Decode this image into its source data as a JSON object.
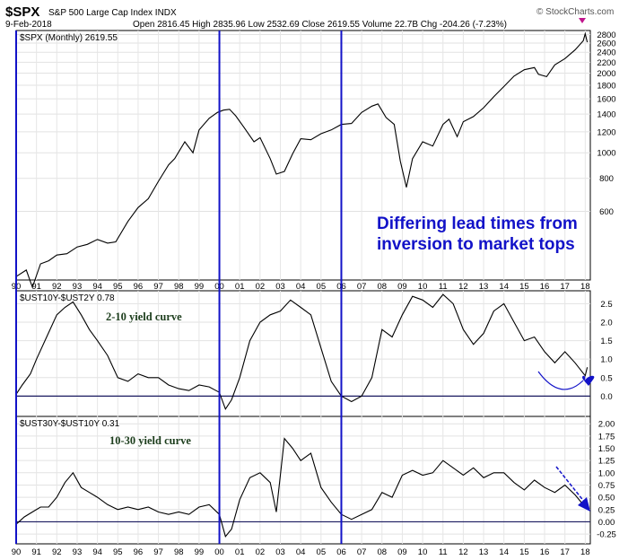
{
  "header": {
    "symbol": "$SPX",
    "name": "S&P 500 Large Cap Index INDX",
    "date": "9-Feb-2018",
    "quote": "Open 2816.45  High 2835.96  Low 2532.69  Close 2619.55  Volume 22.7B  Chg -204.26 (-7.23%)",
    "credit": "© StockCharts.com"
  },
  "chart_data": [
    {
      "type": "line",
      "title": "$SPX (Monthly) 2619.55",
      "scale": "log",
      "x_ticks": [
        "90",
        "91",
        "92",
        "93",
        "94",
        "95",
        "96",
        "97",
        "98",
        "99",
        "00",
        "01",
        "02",
        "03",
        "04",
        "05",
        "06",
        "07",
        "08",
        "09",
        "10",
        "11",
        "12",
        "13",
        "14",
        "15",
        "16",
        "17",
        "18"
      ],
      "y_ticks": [
        600,
        800,
        1000,
        1200,
        1400,
        1600,
        1800,
        2000,
        2200,
        2400,
        2600,
        2800
      ],
      "ylim": [
        330,
        2900
      ],
      "grid": true,
      "annotation": [
        "Differing lead times from",
        "inversion to market tops"
      ],
      "series": [
        {
          "x": [
            1990.0,
            1990.5,
            1990.8,
            1991.2,
            1991.6,
            1992.0,
            1992.5,
            1993.0,
            1993.5,
            1994.0,
            1994.5,
            1994.9,
            1995.5,
            1996.0,
            1996.5,
            1997.0,
            1997.5,
            1997.8,
            1998.3,
            1998.7,
            1999.0,
            1999.5,
            1999.9,
            2000.2,
            2000.5,
            2000.8,
            2001.2,
            2001.7,
            2002.0,
            2002.5,
            2002.8,
            2003.2,
            2003.6,
            2004.0,
            2004.5,
            2005.0,
            2005.5,
            2006.0,
            2006.5,
            2007.0,
            2007.5,
            2007.8,
            2008.2,
            2008.6,
            2008.9,
            2009.2,
            2009.5,
            2010.0,
            2010.5,
            2011.0,
            2011.3,
            2011.7,
            2012.0,
            2012.5,
            2013.0,
            2013.5,
            2014.0,
            2014.5,
            2015.0,
            2015.5,
            2015.7,
            2016.1,
            2016.5,
            2017.0,
            2017.5,
            2017.9,
            2018.0,
            2018.1
          ],
          "y": [
            340,
            360,
            310,
            380,
            390,
            410,
            415,
            440,
            450,
            470,
            455,
            460,
            550,
            620,
            670,
            780,
            900,
            950,
            1100,
            1000,
            1220,
            1350,
            1420,
            1450,
            1460,
            1380,
            1250,
            1100,
            1140,
            950,
            830,
            850,
            990,
            1130,
            1120,
            1180,
            1220,
            1280,
            1290,
            1420,
            1500,
            1530,
            1360,
            1280,
            930,
            740,
            950,
            1100,
            1060,
            1280,
            1340,
            1150,
            1310,
            1370,
            1480,
            1630,
            1780,
            1950,
            2060,
            2100,
            1980,
            1940,
            2150,
            2270,
            2450,
            2650,
            2820,
            2620
          ]
        }
      ]
    },
    {
      "type": "line",
      "title": "$UST10Y-$UST2Y 0.78",
      "x_ticks": [
        "90",
        "91",
        "92",
        "93",
        "94",
        "95",
        "96",
        "97",
        "98",
        "99",
        "00",
        "01",
        "02",
        "03",
        "04",
        "05",
        "06",
        "07",
        "08",
        "09",
        "10",
        "11",
        "12",
        "13",
        "14",
        "15",
        "16",
        "17",
        "18"
      ],
      "y_ticks": [
        0.0,
        0.5,
        1.0,
        1.5,
        2.0,
        2.5
      ],
      "ylim": [
        -0.55,
        2.85
      ],
      "annotation": "2-10 yield curve",
      "series": [
        {
          "x": [
            1990.0,
            1990.3,
            1990.7,
            1991.0,
            1991.5,
            1992.0,
            1992.4,
            1992.8,
            1993.2,
            1993.6,
            1994.0,
            1994.5,
            1995.0,
            1995.5,
            1996.0,
            1996.5,
            1997.0,
            1997.5,
            1998.0,
            1998.5,
            1999.0,
            1999.5,
            2000.0,
            2000.3,
            2000.6,
            2001.0,
            2001.5,
            2002.0,
            2002.5,
            2003.0,
            2003.5,
            2004.0,
            2004.5,
            2005.0,
            2005.5,
            2006.0,
            2006.5,
            2007.0,
            2007.5,
            2008.0,
            2008.5,
            2009.0,
            2009.5,
            2010.0,
            2010.5,
            2011.0,
            2011.5,
            2012.0,
            2012.5,
            2013.0,
            2013.5,
            2014.0,
            2014.5,
            2015.0,
            2015.5,
            2016.0,
            2016.5,
            2017.0,
            2017.5,
            2018.0,
            2018.1
          ],
          "y": [
            0.05,
            0.3,
            0.6,
            1.0,
            1.6,
            2.2,
            2.4,
            2.55,
            2.2,
            1.8,
            1.5,
            1.1,
            0.5,
            0.4,
            0.6,
            0.5,
            0.5,
            0.3,
            0.2,
            0.15,
            0.3,
            0.25,
            0.1,
            -0.35,
            -0.1,
            0.5,
            1.5,
            2.0,
            2.2,
            2.3,
            2.6,
            2.4,
            2.2,
            1.3,
            0.4,
            0.0,
            -0.15,
            0.0,
            0.5,
            1.8,
            1.6,
            2.2,
            2.7,
            2.6,
            2.4,
            2.75,
            2.5,
            1.8,
            1.4,
            1.7,
            2.3,
            2.5,
            2.0,
            1.5,
            1.6,
            1.2,
            0.9,
            1.2,
            0.9,
            0.55,
            0.78
          ]
        }
      ]
    },
    {
      "type": "line",
      "title": "$UST30Y-$UST10Y 0.31",
      "x_ticks": [
        "90",
        "91",
        "92",
        "93",
        "94",
        "95",
        "96",
        "97",
        "98",
        "99",
        "00",
        "01",
        "02",
        "03",
        "04",
        "05",
        "06",
        "07",
        "08",
        "09",
        "10",
        "11",
        "12",
        "13",
        "14",
        "15",
        "16",
        "17",
        "18"
      ],
      "y_ticks": [
        -0.25,
        0.0,
        0.25,
        0.5,
        0.75,
        1.0,
        1.25,
        1.5,
        1.75,
        2.0
      ],
      "ylim": [
        -0.45,
        2.15
      ],
      "annotation": "10-30 yield curve",
      "series": [
        {
          "x": [
            1990.0,
            1990.4,
            1990.8,
            1991.2,
            1991.6,
            1992.0,
            1992.4,
            1992.8,
            1993.2,
            1993.6,
            1994.0,
            1994.5,
            1995.0,
            1995.5,
            1996.0,
            1996.5,
            1997.0,
            1997.5,
            1998.0,
            1998.5,
            1999.0,
            1999.5,
            2000.0,
            2000.3,
            2000.6,
            2001.0,
            2001.5,
            2002.0,
            2002.5,
            2002.8,
            2003.2,
            2003.6,
            2004.0,
            2004.5,
            2005.0,
            2005.5,
            2006.0,
            2006.5,
            2007.0,
            2007.5,
            2008.0,
            2008.5,
            2009.0,
            2009.5,
            2010.0,
            2010.5,
            2011.0,
            2011.5,
            2012.0,
            2012.5,
            2013.0,
            2013.5,
            2014.0,
            2014.5,
            2015.0,
            2015.5,
            2016.0,
            2016.5,
            2017.0,
            2017.5,
            2018.0,
            2018.1
          ],
          "y": [
            -0.05,
            0.1,
            0.2,
            0.3,
            0.3,
            0.5,
            0.8,
            1.0,
            0.7,
            0.6,
            0.5,
            0.35,
            0.25,
            0.3,
            0.25,
            0.3,
            0.2,
            0.15,
            0.2,
            0.15,
            0.3,
            0.35,
            0.15,
            -0.3,
            -0.15,
            0.45,
            0.9,
            1.0,
            0.8,
            0.2,
            1.7,
            1.5,
            1.25,
            1.4,
            0.7,
            0.4,
            0.15,
            0.05,
            0.15,
            0.25,
            0.6,
            0.5,
            0.95,
            1.05,
            0.95,
            1.0,
            1.25,
            1.1,
            0.95,
            1.1,
            0.9,
            1.0,
            1.0,
            0.8,
            0.65,
            0.85,
            0.7,
            0.6,
            0.75,
            0.55,
            0.3,
            0.31
          ]
        }
      ]
    }
  ]
}
